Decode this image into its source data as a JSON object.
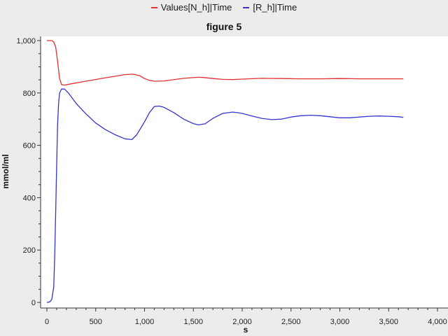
{
  "chart_data": {
    "type": "line",
    "title": "figure 5",
    "xlabel": "s",
    "ylabel": "mmol/ml",
    "xlim": [
      0,
      4000
    ],
    "ylim": [
      0,
      1000
    ],
    "x_ticks": [
      0,
      500,
      1000,
      1500,
      2000,
      2500,
      3000,
      3500,
      4000
    ],
    "x_tick_labels": [
      "0",
      "500",
      "1,000",
      "1,500",
      "2,000",
      "2,500",
      "3,000",
      "3,500",
      "4,000"
    ],
    "y_ticks": [
      0,
      200,
      400,
      600,
      800,
      1000
    ],
    "y_tick_labels": [
      "0",
      "200",
      "400",
      "600",
      "800",
      "1,000"
    ],
    "grid": false,
    "legend_position": "top-center",
    "series": [
      {
        "name": "Values[N_h]|Time",
        "color": "#e03030",
        "x": [
          0,
          50,
          70,
          90,
          110,
          130,
          150,
          180,
          250,
          400,
          600,
          800,
          880,
          950,
          1000,
          1050,
          1100,
          1200,
          1400,
          1550,
          1600,
          1700,
          1800,
          1900,
          2000,
          2200,
          2400,
          2600,
          2800,
          3000,
          3200,
          3400,
          3650
        ],
        "y": [
          1000,
          1000,
          995,
          975,
          920,
          855,
          832,
          830,
          835,
          845,
          858,
          870,
          872,
          866,
          855,
          848,
          845,
          846,
          856,
          860,
          859,
          855,
          852,
          851,
          853,
          856,
          855,
          854,
          854,
          855,
          854,
          854,
          854
        ]
      },
      {
        "name": "[R_h]|Time",
        "color": "#3535d0",
        "x": [
          0,
          30,
          50,
          70,
          80,
          90,
          100,
          110,
          120,
          130,
          150,
          180,
          220,
          300,
          400,
          500,
          600,
          700,
          800,
          870,
          920,
          1000,
          1050,
          1100,
          1150,
          1200,
          1300,
          1400,
          1500,
          1550,
          1620,
          1700,
          1800,
          1900,
          1950,
          2000,
          2100,
          2200,
          2300,
          2400,
          2500,
          2600,
          2700,
          2800,
          2900,
          3000,
          3100,
          3200,
          3300,
          3400,
          3500,
          3600,
          3650
        ],
        "y": [
          0,
          2,
          12,
          60,
          180,
          350,
          530,
          680,
          760,
          800,
          815,
          815,
          800,
          760,
          720,
          685,
          660,
          640,
          625,
          622,
          640,
          690,
          725,
          748,
          750,
          745,
          725,
          700,
          683,
          678,
          682,
          703,
          722,
          727,
          725,
          722,
          712,
          703,
          698,
          700,
          708,
          713,
          715,
          713,
          709,
          705,
          705,
          708,
          711,
          712,
          711,
          709,
          707
        ]
      }
    ]
  }
}
